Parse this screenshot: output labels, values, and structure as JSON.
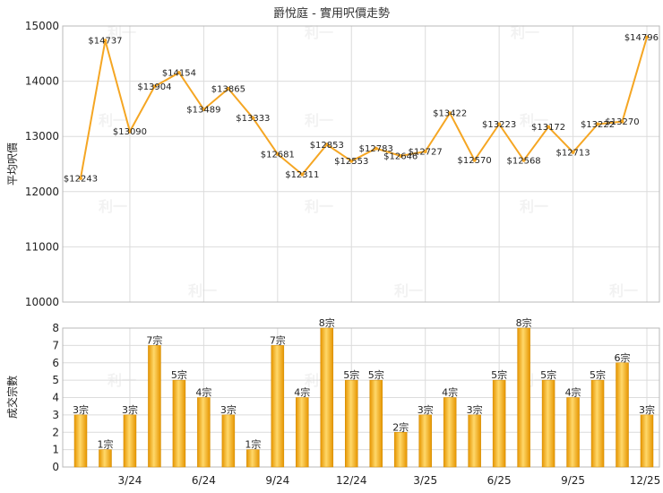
{
  "chart_data": [
    {
      "type": "line",
      "title": "爵悅庭 - 實用呎價走勢",
      "ylabel": "平均呎價",
      "ylim": [
        10000,
        15000
      ],
      "yticks": [
        10000,
        11000,
        12000,
        13000,
        14000,
        15000
      ],
      "series": [
        {
          "values": [
            12243,
            14737,
            13090,
            13904,
            14154,
            13489,
            13865,
            13333,
            12681,
            12311,
            12853,
            12553,
            12783,
            12646,
            12727,
            13422,
            12570,
            13223,
            12568,
            13172,
            12713,
            13222,
            13270,
            14796
          ],
          "labels": [
            "$12243",
            "$14737",
            "$13090",
            "$13904",
            "$14154",
            "$13489",
            "$13865",
            "$13333",
            "$12681",
            "$12311",
            "$12853",
            "$12553",
            "$12783",
            "$12646",
            "$12727",
            "$13422",
            "$12570",
            "$13223",
            "$12568",
            "$13172",
            "$12713",
            "$13222",
            "$13270",
            "$14796"
          ]
        }
      ],
      "grid": true,
      "color": "#f5a623"
    },
    {
      "type": "bar",
      "ylabel": "成交宗數",
      "ylim": [
        0,
        8
      ],
      "yticks": [
        0,
        1,
        2,
        3,
        4,
        5,
        6,
        7,
        8
      ],
      "xticks": [
        "3/24",
        "6/24",
        "9/24",
        "12/24",
        "3/25",
        "6/25",
        "9/25",
        "12/25"
      ],
      "xtick_month_index": [
        2,
        5,
        8,
        11,
        14,
        17,
        20,
        23
      ],
      "values": [
        3,
        1,
        3,
        7,
        5,
        4,
        3,
        1,
        7,
        4,
        8,
        5,
        5,
        2,
        3,
        4,
        3,
        5,
        8,
        5,
        4,
        5,
        6,
        3
      ],
      "labels": [
        "3宗",
        "1宗",
        "3宗",
        "7宗",
        "5宗",
        "4宗",
        "3宗",
        "1宗",
        "7宗",
        "4宗",
        "8宗",
        "5宗",
        "5宗",
        "2宗",
        "3宗",
        "4宗",
        "3宗",
        "5宗",
        "8宗",
        "5宗",
        "4宗",
        "5宗",
        "6宗",
        "3宗"
      ],
      "grid": true,
      "color": "#f5a623"
    }
  ],
  "watermark": "利一"
}
